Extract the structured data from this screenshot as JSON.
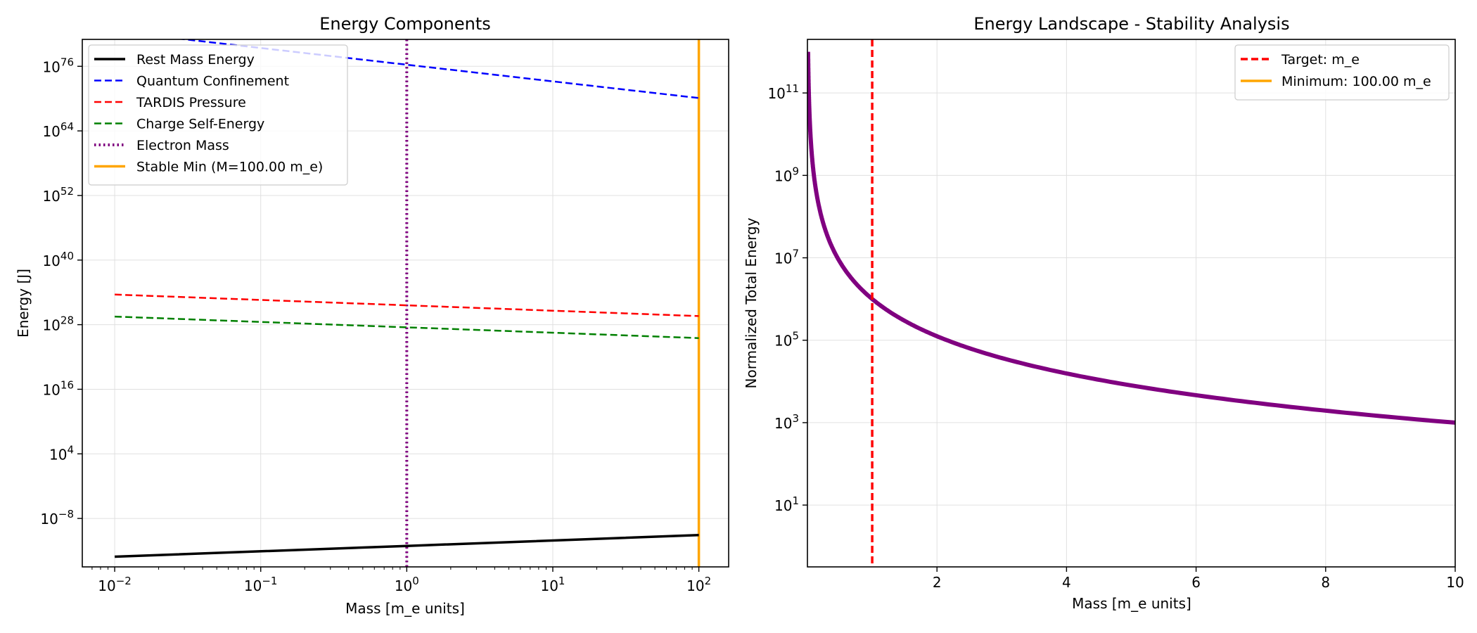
{
  "chart_data": [
    {
      "type": "line",
      "title": "Energy Components",
      "xlabel": "Mass [m_e units]",
      "ylabel": "Energy [J]",
      "xscale": "log",
      "yscale": "log",
      "xlim": [
        0.006,
        160
      ],
      "ylim_exp": [
        -17,
        81
      ],
      "grid": true,
      "legend_placement": "top-left",
      "xticks": [
        {
          "base": "10",
          "exp": "−2",
          "value": 0.01
        },
        {
          "base": "10",
          "exp": "−1",
          "value": 0.1
        },
        {
          "base": "10",
          "exp": "0",
          "value": 1
        },
        {
          "base": "10",
          "exp": "1",
          "value": 10
        },
        {
          "base": "10",
          "exp": "2",
          "value": 100
        }
      ],
      "yticks": [
        {
          "base": "10",
          "exp": "−8",
          "value_exp": -8
        },
        {
          "base": "10",
          "exp": "4",
          "value_exp": 4
        },
        {
          "base": "10",
          "exp": "16",
          "value_exp": 16
        },
        {
          "base": "10",
          "exp": "28",
          "value_exp": 28
        },
        {
          "base": "10",
          "exp": "40",
          "value_exp": 40
        },
        {
          "base": "10",
          "exp": "52",
          "value_exp": 52
        },
        {
          "base": "10",
          "exp": "64",
          "value_exp": 64
        },
        {
          "base": "10",
          "exp": "76",
          "value_exp": 76
        }
      ],
      "series": [
        {
          "name": "Rest Mass Energy",
          "color": "#000000",
          "style": "solid",
          "width": 3.5,
          "x": [
            0.01,
            1,
            100
          ],
          "y_exp": [
            -15.1,
            -13.1,
            -11.1
          ]
        },
        {
          "name": "Quantum Confinement",
          "color": "#0000ff",
          "style": "dashed",
          "width": 2.5,
          "x": [
            0.01,
            1,
            100
          ],
          "y_exp": [
            82.5,
            76.3,
            70.1
          ]
        },
        {
          "name": "TARDIS Pressure",
          "color": "#ff0000",
          "style": "dashed",
          "width": 2.5,
          "x": [
            0.01,
            1,
            100
          ],
          "y_exp": [
            33.6,
            31.6,
            29.6
          ]
        },
        {
          "name": "Charge Self-Energy",
          "color": "#008000",
          "style": "dashed",
          "width": 2.5,
          "x": [
            0.01,
            1,
            100
          ],
          "y_exp": [
            29.5,
            27.5,
            25.5
          ]
        }
      ],
      "vlines": [
        {
          "name": "Electron Mass",
          "color": "#800080",
          "style": "dotted",
          "x": 1
        },
        {
          "name": "Stable Min (M=100.00 m_e)",
          "color": "#ffa500",
          "style": "solid",
          "x": 100
        }
      ]
    },
    {
      "type": "line",
      "title": "Energy Landscape - Stability Analysis",
      "xlabel": "Mass [m_e units]",
      "ylabel": "Normalized Total Energy",
      "xscale": "linear",
      "yscale": "log",
      "xlim": [
        0,
        10
      ],
      "ylim_exp": [
        -0.5,
        12.3
      ],
      "grid": true,
      "legend_placement": "top-right",
      "xticks": [
        {
          "label": "2",
          "value": 2
        },
        {
          "label": "4",
          "value": 4
        },
        {
          "label": "6",
          "value": 6
        },
        {
          "label": "8",
          "value": 8
        },
        {
          "label": "10",
          "value": 10
        }
      ],
      "yticks": [
        {
          "base": "10",
          "exp": "1",
          "value_exp": 1
        },
        {
          "base": "10",
          "exp": "3",
          "value_exp": 3
        },
        {
          "base": "10",
          "exp": "5",
          "value_exp": 5
        },
        {
          "base": "10",
          "exp": "7",
          "value_exp": 7
        },
        {
          "base": "10",
          "exp": "9",
          "value_exp": 9
        },
        {
          "base": "10",
          "exp": "11",
          "value_exp": 11
        }
      ],
      "series": [
        {
          "name": "",
          "color": "#800080",
          "style": "solid",
          "width": 6,
          "function": "1e6 * x^-3",
          "x_range": [
            0.01,
            10
          ]
        }
      ],
      "vlines": [
        {
          "name": "Target: m_e",
          "color": "#ff0000",
          "style": "dashed",
          "x": 1
        },
        {
          "name": "Minimum: 100.00 m_e",
          "color": "#ffa500",
          "style": "solid",
          "x": 100
        }
      ]
    }
  ]
}
